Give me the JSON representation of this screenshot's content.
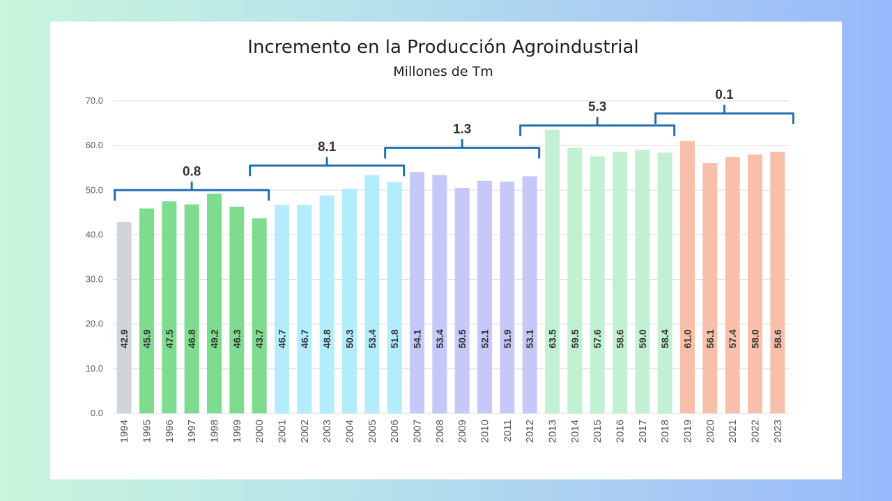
{
  "chart_data": {
    "type": "bar",
    "title": "Incremento en la Producción Agroindustrial",
    "subtitle": "Millones de Tm",
    "ylim": [
      0,
      70
    ],
    "yticks": [
      "0.0",
      "10.0",
      "20.0",
      "30.0",
      "40.0",
      "50.0",
      "60.0",
      "70.0"
    ],
    "grid": true,
    "categories": [
      "1994",
      "1995",
      "1996",
      "1997",
      "1998",
      "1999",
      "2000",
      "2001",
      "2002",
      "2003",
      "2004",
      "2005",
      "2006",
      "2007",
      "2008",
      "2009",
      "2010",
      "2011",
      "2012",
      "2013",
      "2014",
      "2015",
      "2016",
      "2017",
      "2018",
      "2019",
      "2020",
      "2021",
      "2022",
      "2023"
    ],
    "values": [
      42.9,
      45.9,
      47.5,
      46.8,
      49.2,
      46.3,
      43.7,
      46.7,
      46.7,
      48.8,
      50.3,
      53.4,
      51.8,
      54.1,
      53.4,
      50.5,
      52.1,
      51.9,
      53.1,
      63.5,
      59.5,
      57.6,
      58.6,
      59.0,
      58.4,
      61.0,
      56.1,
      57.4,
      58.0,
      58.6
    ],
    "value_labels": [
      "42.9",
      "45.9",
      "47.5",
      "46.8",
      "49.2",
      "46.3",
      "43.7",
      "46.7",
      "46.7",
      "48.8",
      "50.3",
      "53.4",
      "51.8",
      "54.1",
      "53.4",
      "50.5",
      "52.1",
      "51.9",
      "53.1",
      "63.5",
      "59.5",
      "57.6",
      "58.6",
      "59.0",
      "58.4",
      "61.0",
      "56.1",
      "57.4",
      "58.0",
      "58.6"
    ],
    "period_colors": [
      {
        "from": "1994",
        "to": "1994",
        "color": "#d0d5d9"
      },
      {
        "from": "1995",
        "to": "2000",
        "color": "#7ddc8e"
      },
      {
        "from": "2001",
        "to": "2006",
        "color": "#b3ecfa"
      },
      {
        "from": "2007",
        "to": "2012",
        "color": "#c5c8f8"
      },
      {
        "from": "2013",
        "to": "2018",
        "color": "#c2f0d2"
      },
      {
        "from": "2019",
        "to": "2023",
        "color": "#f8c0aa"
      }
    ],
    "annotations": [
      {
        "label": "0.8",
        "from": "1994",
        "to": "2000",
        "level": 50
      },
      {
        "label": "8.1",
        "from": "2000",
        "to": "2006",
        "level": 55.5
      },
      {
        "label": "1.3",
        "from": "2006",
        "to": "2012",
        "level": 59.5
      },
      {
        "label": "5.3",
        "from": "2012",
        "to": "2018",
        "level": 64.5
      },
      {
        "label": "0.1",
        "from": "2018",
        "to": "2023",
        "level": 67.2
      }
    ],
    "brace_color": "#1f6fb2"
  }
}
